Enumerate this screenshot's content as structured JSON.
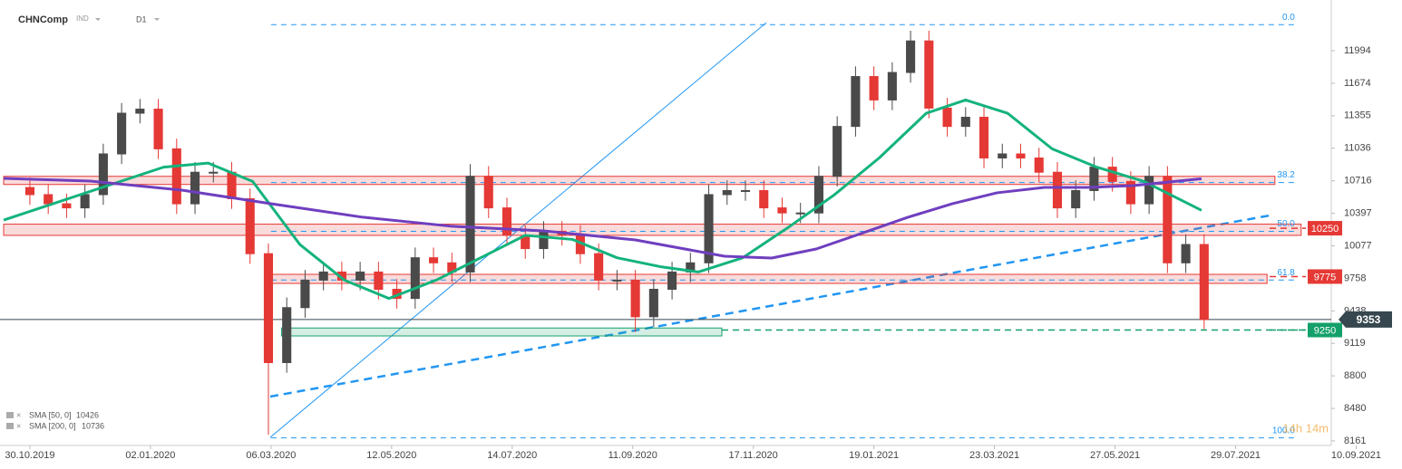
{
  "chart_data": {
    "type": "candlestick",
    "symbol": "CHNComp",
    "market": "IND",
    "interval": "D1",
    "countdown": "14h 14m",
    "up_color": "#4a4a4a",
    "down_color": "#e53935",
    "xlim": [
      -11.4,
      496.5
    ],
    "ylim": [
      8116,
      12492
    ],
    "xticks": [
      {
        "value": 0,
        "label": "30.10.2019"
      },
      {
        "value": 46,
        "label": "02.01.2020"
      },
      {
        "value": 92,
        "label": "06.03.2020"
      },
      {
        "value": 138,
        "label": "12.05.2020"
      },
      {
        "value": 184,
        "label": "14.07.2020"
      },
      {
        "value": 230,
        "label": "11.09.2020"
      },
      {
        "value": 276,
        "label": "17.11.2020"
      },
      {
        "value": 322,
        "label": "19.01.2021"
      },
      {
        "value": 368,
        "label": "23.03.2021"
      },
      {
        "value": 414,
        "label": "27.05.2021"
      },
      {
        "value": 460,
        "label": "29.07.2021"
      },
      {
        "value": 506,
        "label": "10.09.2021"
      }
    ],
    "yticks": [
      11994,
      11674,
      11355,
      11036,
      10716,
      10397,
      10077,
      9758,
      9438,
      9119,
      8800,
      8480,
      8161
    ],
    "x": [
      0,
      7,
      14,
      21,
      28,
      35,
      42,
      49,
      56,
      63,
      70,
      77,
      84,
      91,
      98,
      105,
      112,
      119,
      126,
      133,
      140,
      147,
      154,
      161,
      168,
      175,
      182,
      189,
      196,
      203,
      210,
      217,
      224,
      231,
      238,
      245,
      252,
      259,
      266,
      273,
      280,
      287,
      294,
      301,
      308,
      315,
      322,
      329,
      336,
      343,
      350,
      357,
      364,
      371,
      378,
      385,
      392,
      399,
      406,
      413,
      420,
      427,
      434,
      441,
      448
    ],
    "open": [
      10650,
      10580,
      10490,
      10450,
      10580,
      10980,
      11380,
      11420,
      11030,
      10490,
      10800,
      10800,
      10540,
      10000,
      8930,
      9470,
      9740,
      9820,
      9740,
      9820,
      9650,
      9560,
      9960,
      9910,
      9820,
      10760,
      10450,
      10180,
      10050,
      10220,
      10180,
      10000,
      9740,
      9740,
      9380,
      9650,
      9820,
      9910,
      10580,
      10620,
      10620,
      10450,
      10400,
      10400,
      10760,
      11250,
      11740,
      11510,
      11780,
      12090,
      11430,
      11250,
      11340,
      10940,
      10980,
      10940,
      10800,
      10450,
      10620,
      10850,
      10710,
      10490,
      10760,
      9910,
      10090
    ],
    "high": [
      10750,
      10680,
      10590,
      10680,
      11080,
      11480,
      11520,
      11520,
      11130,
      10900,
      10900,
      10900,
      10640,
      10100,
      9570,
      9840,
      9920,
      9920,
      9920,
      9920,
      9750,
      10060,
      10060,
      10010,
      10880,
      10860,
      10550,
      10280,
      10320,
      10320,
      10280,
      10100,
      9840,
      9840,
      9750,
      9920,
      10010,
      10680,
      10720,
      10720,
      10720,
      10550,
      10500,
      10860,
      11350,
      11840,
      11840,
      11880,
      12190,
      12190,
      11530,
      11440,
      11440,
      11080,
      11080,
      11040,
      10900,
      10720,
      10950,
      10950,
      10810,
      10860,
      10860,
      10190,
      10190
    ],
    "low": [
      10480,
      10390,
      10350,
      10350,
      10480,
      10880,
      11280,
      10930,
      10390,
      10390,
      10700,
      10440,
      9900,
      8220,
      8830,
      9370,
      9640,
      9640,
      9640,
      9550,
      9460,
      9460,
      9810,
      9720,
      9720,
      10350,
      10080,
      9950,
      9950,
      10080,
      9900,
      9640,
      9640,
      9230,
      9280,
      9550,
      9720,
      9810,
      10480,
      10520,
      10350,
      10300,
      10300,
      10300,
      10660,
      11150,
      11410,
      11410,
      11680,
      11330,
      11150,
      11150,
      10840,
      10840,
      10840,
      10700,
      10350,
      10350,
      10520,
      10610,
      10390,
      10390,
      9810,
      9810,
      9253
    ],
    "close": [
      10580,
      10490,
      10450,
      10580,
      10980,
      11380,
      11420,
      11030,
      10490,
      10800,
      10800,
      10540,
      10000,
      8930,
      9470,
      9740,
      9820,
      9740,
      9820,
      9650,
      9560,
      9960,
      9910,
      9820,
      10760,
      10450,
      10180,
      10050,
      10220,
      10180,
      10000,
      9740,
      9740,
      9380,
      9650,
      9820,
      9910,
      10580,
      10620,
      10620,
      10450,
      10400,
      10400,
      10760,
      11250,
      11740,
      11510,
      11780,
      12090,
      11430,
      11250,
      11340,
      10940,
      10980,
      10940,
      10800,
      10450,
      10620,
      10850,
      10710,
      10490,
      10760,
      9910,
      10090,
      9353
    ],
    "series": [
      {
        "name": "SMA [50, 0]",
        "color": "#14b37d",
        "x": [
          -10,
          51,
          68,
          85,
          103,
          120,
          137,
          155,
          172,
          189,
          207,
          224,
          241,
          255,
          272,
          290,
          307,
          324,
          342,
          357,
          373,
          390,
          407,
          425,
          447
        ],
        "values": [
          10330,
          10850,
          10890,
          10710,
          10090,
          9740,
          9560,
          9740,
          9960,
          10180,
          10140,
          9960,
          9870,
          9820,
          9960,
          10270,
          10580,
          10940,
          11380,
          11510,
          11380,
          11030,
          10850,
          10710,
          10426
        ]
      },
      {
        "name": "SMA [200, 0]",
        "color": "#6f3fbf",
        "x": [
          -10,
          23,
          58,
          92,
          127,
          161,
          196,
          231,
          265,
          283,
          300,
          317,
          335,
          352,
          369,
          387,
          404,
          421,
          447
        ],
        "values": [
          10740,
          10713,
          10624,
          10491,
          10358,
          10269,
          10224,
          10135,
          9975,
          9957,
          10046,
          10197,
          10358,
          10491,
          10598,
          10651,
          10651,
          10669,
          10736
        ]
      }
    ],
    "zones": [
      {
        "low": 10680,
        "high": 10760,
        "x0": -10,
        "x1": 475,
        "color": "#e53935"
      },
      {
        "low": 10180,
        "high": 10290,
        "x0": -10,
        "x1": 485,
        "color": "#e53935"
      },
      {
        "low": 9708,
        "high": 9797,
        "x0": 92,
        "x1": 472,
        "color": "#e53935"
      },
      {
        "low": 9192,
        "high": 9270,
        "x0": 96,
        "x1": 264,
        "color": "#14a06a"
      }
    ],
    "levels": [
      {
        "value": 10250,
        "color": "#e53935"
      },
      {
        "value": 9775,
        "color": "#e53935"
      },
      {
        "value": 9250,
        "color": "#14a06a"
      }
    ],
    "last_price": 9353,
    "fib": {
      "high": 12250,
      "low": 8190,
      "x0": 92,
      "x1": 484,
      "levels": [
        0,
        38.2,
        50,
        61.8,
        100
      ],
      "level_labels": [
        "0.0",
        "38.2",
        "50.0",
        "61.8",
        "100.0"
      ]
    }
  }
}
